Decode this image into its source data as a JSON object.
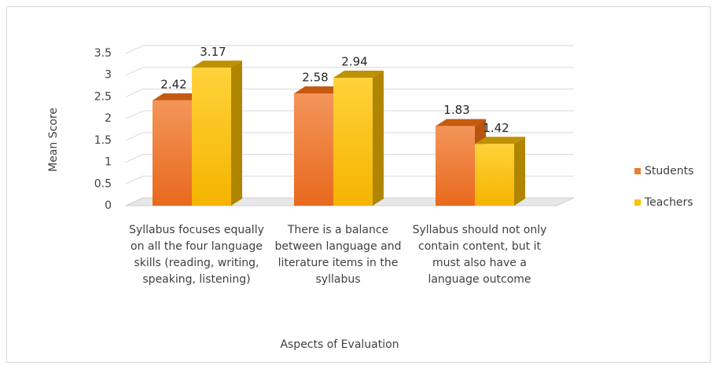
{
  "chart_data": {
    "type": "bar3d",
    "x_label": "Aspects of Evaluation",
    "y_label": "Mean Score",
    "categories": [
      "Syllabus focuses equally on all the four language skills (reading, writing, speaking, listening)",
      "There is a balance between language and literature items in the syllabus",
      "Syllabus should not only contain content, but it must also have a language outcome"
    ],
    "series": [
      {
        "name": "Students",
        "color": "#ed7d31",
        "values": [
          2.42,
          2.58,
          1.83
        ]
      },
      {
        "name": "Teachers",
        "color": "#ffc000",
        "values": [
          3.17,
          2.94,
          1.42
        ]
      }
    ],
    "ylim": [
      0,
      3.5
    ],
    "yticks": [
      0,
      0.5,
      1,
      1.5,
      2,
      2.5,
      3,
      3.5
    ],
    "grid": true,
    "legend": "right"
  }
}
